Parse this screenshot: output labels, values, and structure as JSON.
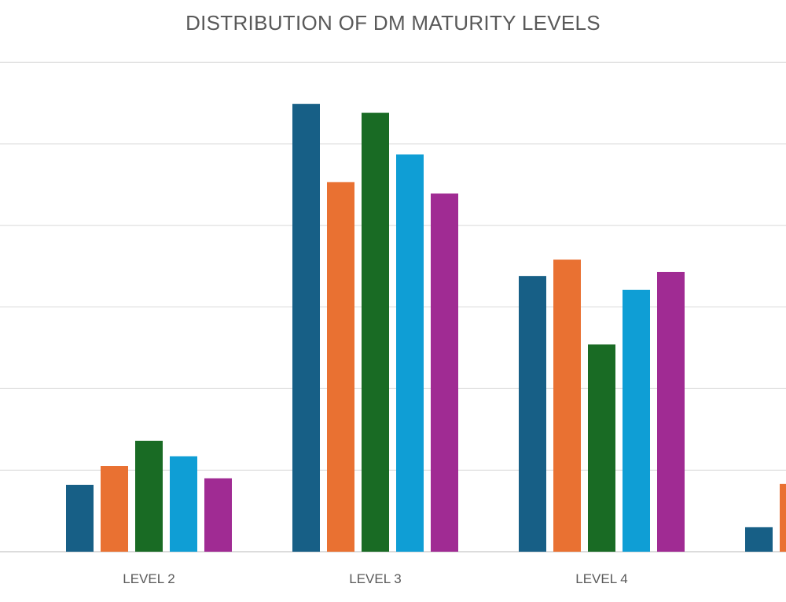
{
  "chart_data": {
    "type": "bar",
    "title": "DISTRIBUTION OF DM MATURITY LEVELS",
    "categories": [
      "LEVEL 2",
      "LEVEL 3",
      "LEVEL 4",
      ""
    ],
    "series": [
      {
        "color": "#175f86",
        "values": [
          0.82,
          5.49,
          3.38,
          0.3
        ]
      },
      {
        "color": "#e97132",
        "values": [
          1.05,
          4.53,
          3.58,
          0.83
        ]
      },
      {
        "color": "#196b24",
        "values": [
          1.36,
          5.38,
          2.54,
          null
        ]
      },
      {
        "color": "#0f9ed5",
        "values": [
          1.17,
          4.87,
          3.21,
          null
        ]
      },
      {
        "color": "#a02b93",
        "values": [
          0.9,
          4.39,
          3.43,
          null
        ]
      }
    ],
    "ylim": [
      0,
      6
    ],
    "grid": true,
    "legend": "none",
    "xlabel": "",
    "ylabel": ""
  }
}
